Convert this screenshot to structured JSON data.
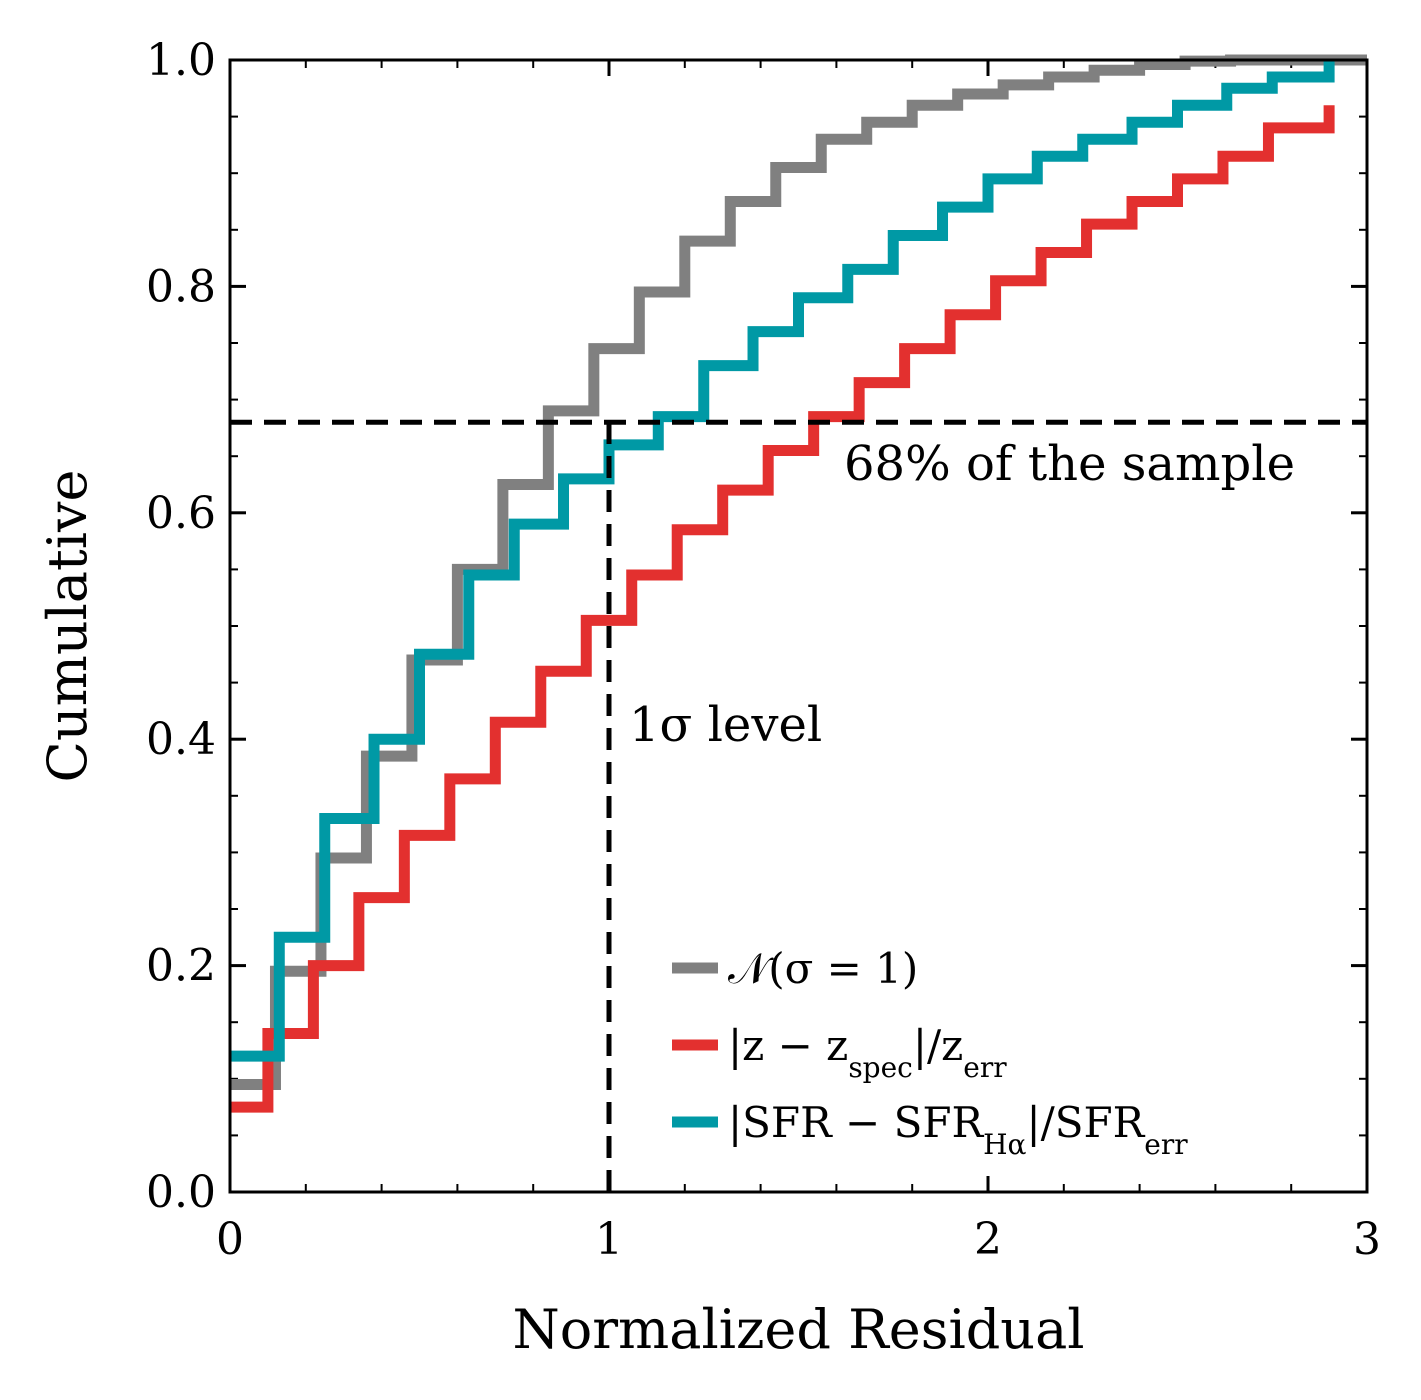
{
  "chart_data": {
    "type": "line",
    "step": "post",
    "xlabel": "Normalized Residual",
    "ylabel": "Cumulative",
    "xlim": [
      0,
      3
    ],
    "ylim": [
      0,
      1.0
    ],
    "xticks": [
      0,
      1,
      2,
      3
    ],
    "xtick_labels": [
      "0",
      "1",
      "2",
      "3"
    ],
    "yticks": [
      0.0,
      0.2,
      0.4,
      0.6,
      0.8,
      1.0
    ],
    "ytick_labels": [
      "0.0",
      "0.2",
      "0.4",
      "0.6",
      "0.8",
      "1.0"
    ],
    "x_minor_step": 0.2,
    "y_minor_step": 0.05,
    "legend_position": "lower-right",
    "series": [
      {
        "name": "𝒩(σ = 1)",
        "color": "#808080",
        "x": [
          0,
          0.12,
          0.24,
          0.36,
          0.48,
          0.6,
          0.72,
          0.84,
          0.96,
          1.08,
          1.2,
          1.32,
          1.44,
          1.56,
          1.68,
          1.8,
          1.92,
          2.04,
          2.16,
          2.28,
          2.4,
          2.52,
          2.64,
          3.0
        ],
        "y": [
          0.095,
          0.195,
          0.295,
          0.385,
          0.47,
          0.55,
          0.625,
          0.69,
          0.745,
          0.795,
          0.84,
          0.875,
          0.905,
          0.93,
          0.945,
          0.96,
          0.97,
          0.978,
          0.985,
          0.991,
          0.996,
          0.999,
          1.0,
          1.0
        ]
      },
      {
        "name": "|z − z_spec|/z_err",
        "color": "#e3302f",
        "x": [
          0,
          0.1,
          0.22,
          0.34,
          0.46,
          0.58,
          0.7,
          0.82,
          0.94,
          1.06,
          1.18,
          1.3,
          1.42,
          1.54,
          1.66,
          1.78,
          1.9,
          2.02,
          2.14,
          2.26,
          2.38,
          2.5,
          2.62,
          2.74,
          2.9
        ],
        "y": [
          0.075,
          0.14,
          0.2,
          0.26,
          0.315,
          0.365,
          0.415,
          0.46,
          0.505,
          0.545,
          0.585,
          0.62,
          0.655,
          0.685,
          0.715,
          0.745,
          0.775,
          0.805,
          0.83,
          0.855,
          0.875,
          0.895,
          0.915,
          0.94,
          0.96
        ]
      },
      {
        "name": "|SFR − SFR_Hα|/SFR_err",
        "color": "#0099a5",
        "x": [
          0,
          0.13,
          0.25,
          0.38,
          0.5,
          0.63,
          0.75,
          0.88,
          1.0,
          1.13,
          1.25,
          1.38,
          1.5,
          1.63,
          1.75,
          1.88,
          2.0,
          2.13,
          2.25,
          2.38,
          2.5,
          2.63,
          2.75,
          2.9
        ],
        "y": [
          0.12,
          0.225,
          0.33,
          0.4,
          0.475,
          0.545,
          0.59,
          0.63,
          0.66,
          0.685,
          0.73,
          0.76,
          0.79,
          0.815,
          0.845,
          0.87,
          0.895,
          0.915,
          0.93,
          0.945,
          0.96,
          0.975,
          0.985,
          1.0
        ]
      }
    ],
    "reference_lines": [
      {
        "orientation": "horizontal",
        "value": 0.68,
        "style": "dashed",
        "label": "68% of the sample"
      },
      {
        "orientation": "vertical",
        "value": 1.0,
        "y_to": 0.68,
        "style": "dashed",
        "label": "1σ level"
      }
    ]
  },
  "legend": {
    "items": [
      {
        "prefix": "𝒩(σ = 1)",
        "sub": "",
        "mid": "",
        "sub2": ""
      },
      {
        "prefix": "|z − z",
        "sub": "spec",
        "mid": "|/z",
        "sub2": "err"
      },
      {
        "prefix": "|SFR − SFR",
        "sub": "Hα",
        "mid": "|/SFR",
        "sub2": "err"
      }
    ]
  }
}
